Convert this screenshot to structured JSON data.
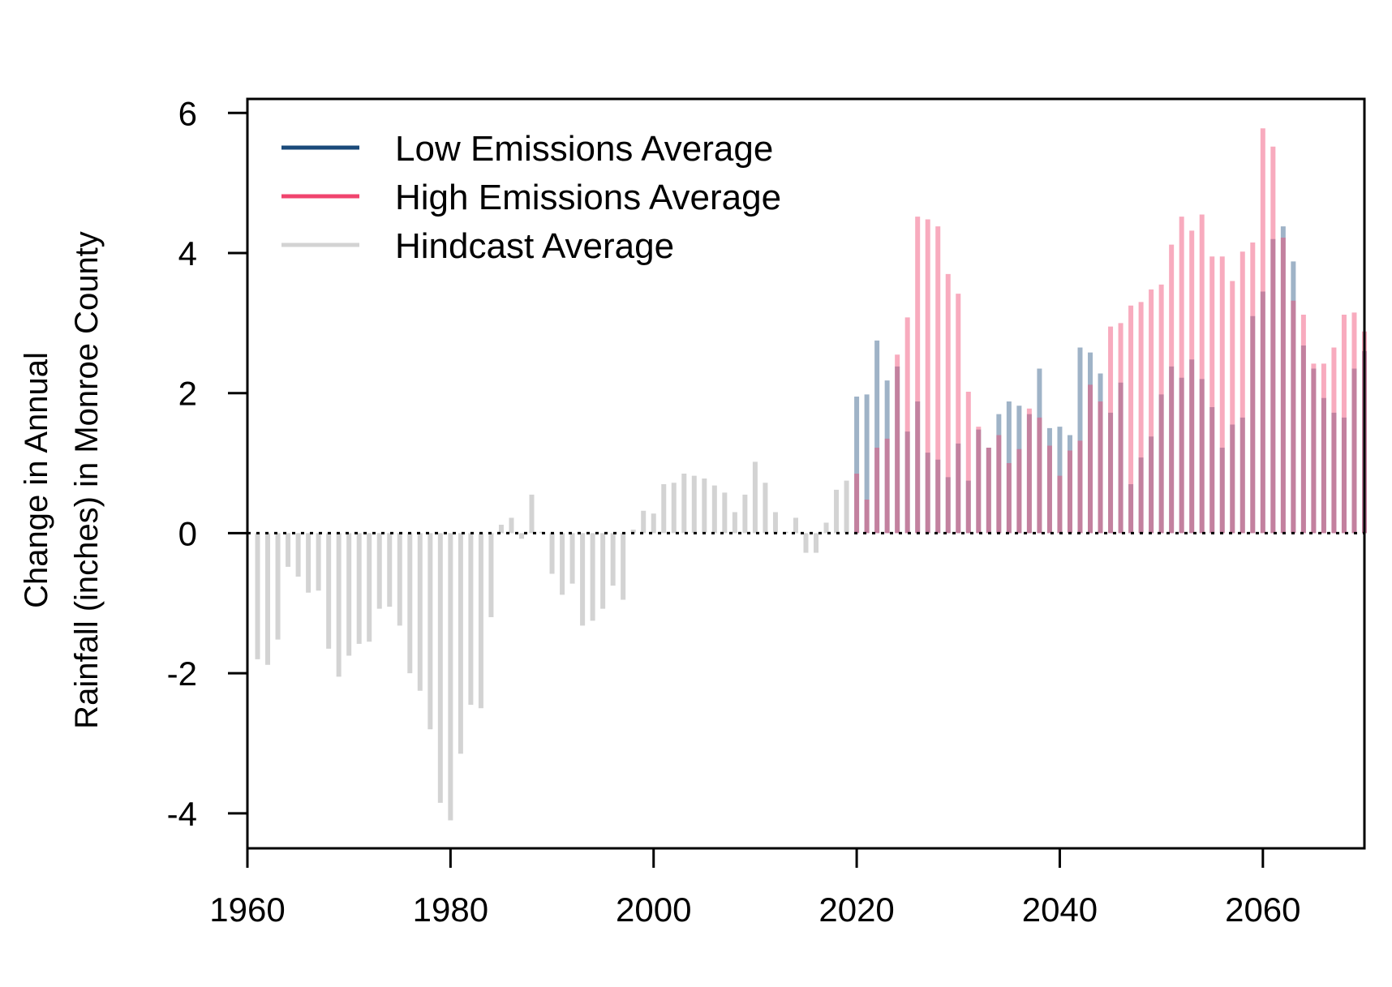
{
  "chart_data": {
    "type": "bar",
    "title": "",
    "xlabel": "",
    "ylabel_lines": [
      "Change in Annual",
      "Rainfall (inches) in Monroe County"
    ],
    "xlim": [
      1960,
      2070
    ],
    "ylim": [
      -4.5,
      6.2
    ],
    "xticks": [
      1960,
      1980,
      2000,
      2020,
      2040,
      2060
    ],
    "yticks": [
      -4,
      -2,
      0,
      2,
      4,
      6
    ],
    "grid": false,
    "zero_line": "dotted",
    "legend_position": "top-left",
    "series": [
      {
        "name": "Hindcast Average",
        "color": "#d3d3d3",
        "x": [
          1961,
          1962,
          1963,
          1964,
          1965,
          1966,
          1967,
          1968,
          1969,
          1970,
          1971,
          1972,
          1973,
          1974,
          1975,
          1976,
          1977,
          1978,
          1979,
          1980,
          1981,
          1982,
          1983,
          1984,
          1985,
          1986,
          1987,
          1988,
          1989,
          1990,
          1991,
          1992,
          1993,
          1994,
          1995,
          1996,
          1997,
          1998,
          1999,
          2000,
          2001,
          2002,
          2003,
          2004,
          2005,
          2006,
          2007,
          2008,
          2009,
          2010,
          2011,
          2012,
          2013,
          2014,
          2015,
          2016,
          2017,
          2018,
          2019
        ],
        "values": [
          -1.8,
          -1.88,
          -1.52,
          -0.48,
          -0.62,
          -0.85,
          -0.82,
          -1.65,
          -2.05,
          -1.75,
          -1.58,
          -1.55,
          -1.08,
          -1.05,
          -1.32,
          -2.0,
          -2.25,
          -2.8,
          -3.85,
          -4.1,
          -3.15,
          -2.45,
          -2.5,
          -1.2,
          0.12,
          0.22,
          -0.08,
          0.55,
          0.02,
          -0.58,
          -0.88,
          -0.72,
          -1.32,
          -1.25,
          -1.08,
          -0.75,
          -0.95,
          0.05,
          0.32,
          0.28,
          0.7,
          0.72,
          0.85,
          0.82,
          0.78,
          0.68,
          0.58,
          0.3,
          0.55,
          1.02,
          0.72,
          0.3,
          0.02,
          0.22,
          -0.28,
          -0.28,
          0.15,
          0.62,
          0.75
        ]
      },
      {
        "name": "Low Emissions Average",
        "color": "#1a4a7a",
        "x": [
          2020,
          2021,
          2022,
          2023,
          2024,
          2025,
          2026,
          2027,
          2028,
          2029,
          2030,
          2031,
          2032,
          2033,
          2034,
          2035,
          2036,
          2037,
          2038,
          2039,
          2040,
          2041,
          2042,
          2043,
          2044,
          2045,
          2046,
          2047,
          2048,
          2049,
          2050,
          2051,
          2052,
          2053,
          2054,
          2055,
          2056,
          2057,
          2058,
          2059,
          2060,
          2061,
          2062,
          2063,
          2064,
          2065,
          2066,
          2067,
          2068,
          2069,
          2070
        ],
        "values": [
          1.95,
          1.98,
          2.75,
          2.18,
          2.38,
          1.45,
          1.88,
          1.15,
          1.05,
          0.8,
          1.28,
          0.75,
          1.48,
          1.22,
          1.7,
          1.88,
          1.82,
          1.7,
          2.35,
          1.5,
          1.52,
          1.4,
          2.65,
          2.58,
          2.28,
          1.72,
          2.15,
          0.7,
          1.08,
          1.38,
          1.98,
          2.38,
          2.22,
          2.48,
          2.2,
          1.8,
          1.22,
          1.55,
          1.65,
          3.1,
          3.45,
          4.2,
          4.38,
          3.88,
          2.68,
          2.35,
          1.93,
          1.72,
          1.65,
          2.35,
          2.6
        ]
      },
      {
        "name": "High Emissions Average",
        "color": "#f0446e",
        "x": [
          2020,
          2021,
          2022,
          2023,
          2024,
          2025,
          2026,
          2027,
          2028,
          2029,
          2030,
          2031,
          2032,
          2033,
          2034,
          2035,
          2036,
          2037,
          2038,
          2039,
          2040,
          2041,
          2042,
          2043,
          2044,
          2045,
          2046,
          2047,
          2048,
          2049,
          2050,
          2051,
          2052,
          2053,
          2054,
          2055,
          2056,
          2057,
          2058,
          2059,
          2060,
          2061,
          2062,
          2063,
          2064,
          2065,
          2066,
          2067,
          2068,
          2069,
          2070
        ],
        "values": [
          0.85,
          0.48,
          1.22,
          1.35,
          2.55,
          3.08,
          4.52,
          4.48,
          4.38,
          3.7,
          3.42,
          2.02,
          1.52,
          1.22,
          1.4,
          1.0,
          1.2,
          1.78,
          1.65,
          1.25,
          0.82,
          1.18,
          1.32,
          2.12,
          1.88,
          2.95,
          3.0,
          3.25,
          3.3,
          3.48,
          3.55,
          4.12,
          4.52,
          4.32,
          4.55,
          3.95,
          3.95,
          3.6,
          4.02,
          4.15,
          5.78,
          5.52,
          4.22,
          3.32,
          3.12,
          2.42,
          2.42,
          2.65,
          3.12,
          3.15,
          2.88
        ]
      }
    ]
  }
}
